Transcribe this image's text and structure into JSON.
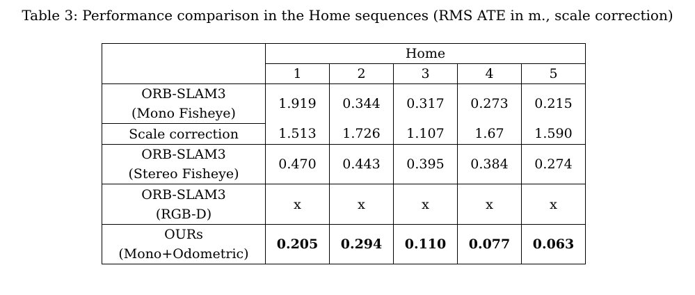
{
  "caption": "Table 3: Performance comparison in the Home sequences (RMS ATE in m., scale correction)",
  "header": {
    "group": "Home",
    "sequences": [
      "1",
      "2",
      "3",
      "4",
      "5"
    ]
  },
  "rows": [
    {
      "method_line1": "ORB-SLAM3",
      "method_line2": "(Mono Fisheye)",
      "values": [
        "1.919",
        "0.344",
        "0.317",
        "0.273",
        "0.215"
      ],
      "sub_label": "Scale correction",
      "sub_values": [
        "1.513",
        "1.726",
        "1.107",
        "1.67",
        "1.590"
      ]
    },
    {
      "method_line1": "ORB-SLAM3",
      "method_line2": "(Stereo Fisheye)",
      "values": [
        "0.470",
        "0.443",
        "0.395",
        "0.384",
        "0.274"
      ]
    },
    {
      "method_line1": "ORB-SLAM3",
      "method_line2": "(RGB-D)",
      "values": [
        "x",
        "x",
        "x",
        "x",
        "x"
      ]
    },
    {
      "method_line1": "OURs",
      "method_line2": "(Mono+Odometric)",
      "values": [
        "0.205",
        "0.294",
        "0.110",
        "0.077",
        "0.063"
      ]
    }
  ]
}
